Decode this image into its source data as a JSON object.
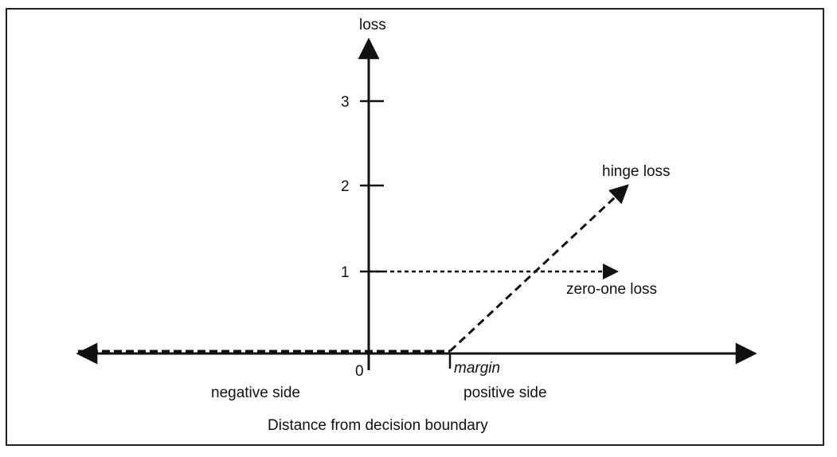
{
  "figure": {
    "y_axis_label": "loss",
    "y_tick_labels": [
      "1",
      "2",
      "3"
    ],
    "origin_label": "0",
    "margin_label": "margin",
    "negative_side_label": "negative side",
    "positive_side_label": "positive side",
    "x_axis_title": "Distance from decision boundary",
    "hinge_loss_label": "hinge loss",
    "zero_one_loss_label": "zero-one loss"
  },
  "chart_data": {
    "type": "line",
    "xlabel": "Distance from decision boundary",
    "ylabel": "loss",
    "y_ticks": [
      1,
      2,
      3
    ],
    "series": [
      {
        "name": "hinge loss",
        "line_style": "dashed",
        "points": [
          {
            "x": "negative side",
            "y": 0
          },
          {
            "x": "margin",
            "y": 0
          },
          {
            "x": "positive side",
            "y": 2
          }
        ]
      },
      {
        "name": "zero-one loss",
        "line_style": "dotted",
        "points": [
          {
            "x": "0",
            "y": 1
          },
          {
            "x": "positive side",
            "y": 1
          }
        ]
      }
    ]
  }
}
